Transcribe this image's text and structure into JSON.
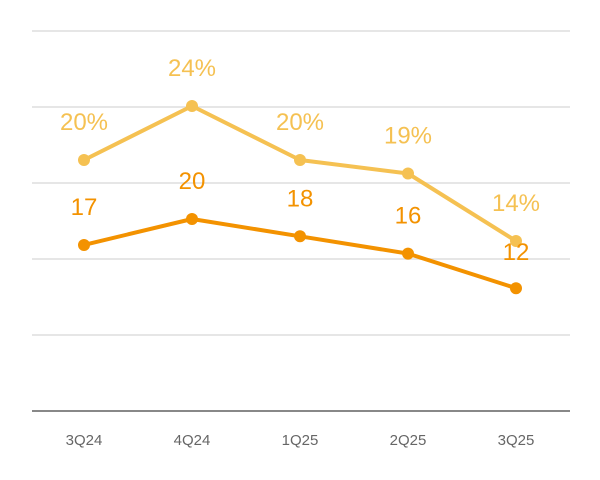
{
  "chart_data": {
    "type": "line",
    "title": "",
    "xlabel": "",
    "ylabel": "",
    "categories": [
      "3Q24",
      "4Q24",
      "1Q25",
      "2Q25",
      "3Q25"
    ],
    "grid": true,
    "legend": "none",
    "series": [
      {
        "values": [
          20,
          24,
          20,
          19,
          14
        ],
        "labels": [
          "20%",
          "24%",
          "20%",
          "19%",
          "14%"
        ],
        "color": "#F5C152"
      },
      {
        "values": [
          17,
          20,
          18,
          16,
          12
        ],
        "labels": [
          "17",
          "20",
          "18",
          "16",
          "12"
        ],
        "color": "#F39200"
      }
    ]
  }
}
